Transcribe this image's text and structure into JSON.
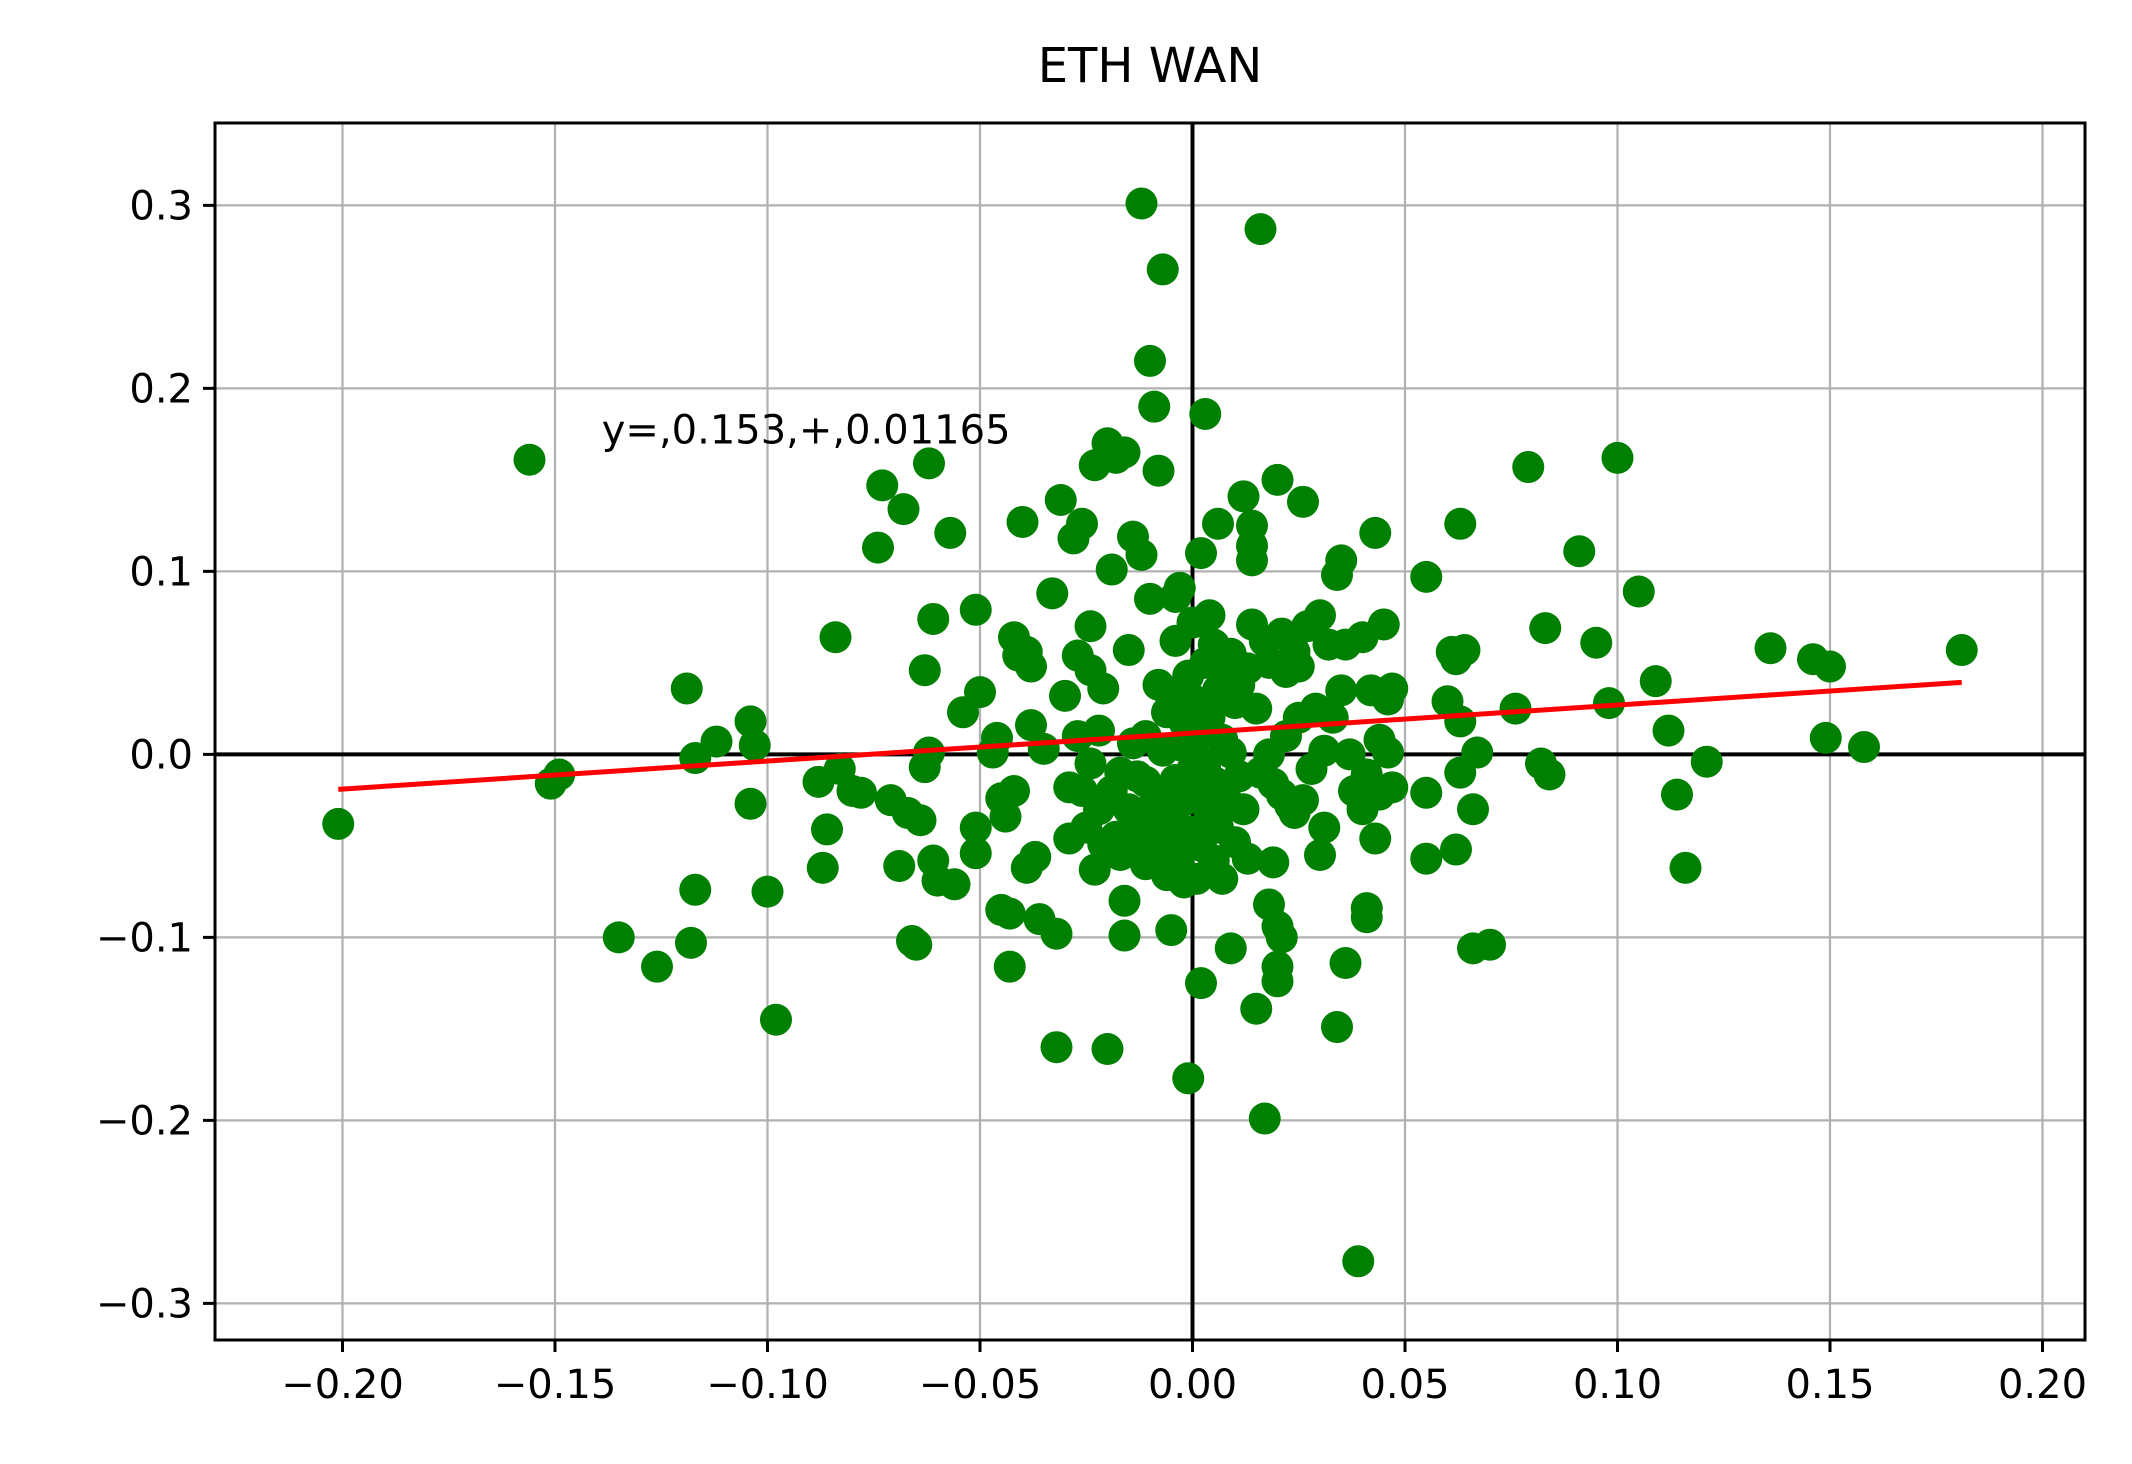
{
  "chart_data": {
    "type": "scatter",
    "title": "ETH WAN",
    "xlabel": "",
    "ylabel": "",
    "xlim": [
      -0.23,
      0.21
    ],
    "ylim": [
      -0.32,
      0.345
    ],
    "x_ticks": [
      -0.2,
      -0.15,
      -0.1,
      -0.05,
      0.0,
      0.05,
      0.1,
      0.15,
      0.2
    ],
    "x_tick_labels": [
      "−0.20",
      "−0.15",
      "−0.10",
      "−0.05",
      "0.00",
      "0.05",
      "0.10",
      "0.15",
      "0.20"
    ],
    "y_ticks": [
      -0.3,
      -0.2,
      -0.1,
      0.0,
      0.1,
      0.2,
      0.3
    ],
    "y_tick_labels": [
      "−0.3",
      "−0.2",
      "−0.1",
      "0.0",
      "0.1",
      "0.2",
      "0.3"
    ],
    "grid": true,
    "axis_lines": {
      "x": 0,
      "y": 0,
      "color": "#000000"
    },
    "point_color": "#008000",
    "fit_line": {
      "slope": 0.153,
      "intercept": 0.01165,
      "x_range": [
        -0.201,
        0.181
      ],
      "color": "#ff0000"
    },
    "annotation": {
      "text": "y=,0.153,+,0.01165",
      "x": -0.139,
      "y": 0.17
    },
    "points": [
      [
        -0.201,
        -0.038
      ],
      [
        -0.156,
        0.161
      ],
      [
        -0.151,
        -0.016
      ],
      [
        -0.149,
        -0.011
      ],
      [
        -0.135,
        -0.1
      ],
      [
        -0.126,
        -0.116
      ],
      [
        -0.119,
        0.036
      ],
      [
        -0.118,
        -0.103
      ],
      [
        -0.117,
        -0.074
      ],
      [
        -0.117,
        -0.002
      ],
      [
        -0.112,
        0.007
      ],
      [
        -0.104,
        0.018
      ],
      [
        -0.104,
        -0.027
      ],
      [
        -0.103,
        0.005
      ],
      [
        -0.1,
        -0.075
      ],
      [
        -0.098,
        -0.145
      ],
      [
        -0.088,
        -0.015
      ],
      [
        -0.087,
        -0.062
      ],
      [
        -0.086,
        -0.041
      ],
      [
        -0.084,
        0.064
      ],
      [
        -0.083,
        -0.008
      ],
      [
        -0.08,
        -0.02
      ],
      [
        -0.078,
        -0.021
      ],
      [
        -0.074,
        0.113
      ],
      [
        -0.073,
        0.147
      ],
      [
        -0.071,
        -0.025
      ],
      [
        -0.069,
        -0.061
      ],
      [
        -0.068,
        0.134
      ],
      [
        -0.067,
        -0.032
      ],
      [
        -0.066,
        -0.102
      ],
      [
        -0.065,
        -0.104
      ],
      [
        -0.064,
        -0.036
      ],
      [
        -0.063,
        0.046
      ],
      [
        -0.063,
        -0.007
      ],
      [
        -0.062,
        0.159
      ],
      [
        -0.062,
        0.001
      ],
      [
        -0.061,
        -0.058
      ],
      [
        -0.061,
        0.074
      ],
      [
        -0.06,
        -0.069
      ],
      [
        -0.057,
        0.121
      ],
      [
        -0.056,
        -0.071
      ],
      [
        -0.054,
        0.023
      ],
      [
        -0.051,
        0.079
      ],
      [
        -0.051,
        -0.04
      ],
      [
        -0.051,
        -0.054
      ],
      [
        -0.05,
        0.034
      ],
      [
        -0.047,
        0.001
      ],
      [
        -0.046,
        0.009
      ],
      [
        -0.045,
        -0.085
      ],
      [
        -0.045,
        -0.024
      ],
      [
        -0.044,
        -0.034
      ],
      [
        -0.043,
        -0.116
      ],
      [
        -0.043,
        -0.087
      ],
      [
        -0.042,
        0.064
      ],
      [
        -0.042,
        -0.02
      ],
      [
        -0.041,
        0.054
      ],
      [
        -0.04,
        0.127
      ],
      [
        -0.039,
        -0.062
      ],
      [
        -0.039,
        0.056
      ],
      [
        -0.038,
        0.048
      ],
      [
        -0.038,
        0.016
      ],
      [
        -0.037,
        -0.056
      ],
      [
        -0.036,
        -0.09
      ],
      [
        -0.035,
        0.003
      ],
      [
        -0.033,
        0.088
      ],
      [
        -0.032,
        -0.16
      ],
      [
        -0.032,
        -0.098
      ],
      [
        -0.031,
        0.139
      ],
      [
        -0.03,
        0.032
      ],
      [
        -0.029,
        -0.018
      ],
      [
        -0.029,
        -0.046
      ],
      [
        -0.028,
        0.118
      ],
      [
        -0.027,
        0.054
      ],
      [
        -0.027,
        0.01
      ],
      [
        -0.026,
        0.126
      ],
      [
        -0.026,
        -0.02
      ],
      [
        -0.025,
        -0.04
      ],
      [
        -0.024,
        0.07
      ],
      [
        -0.024,
        0.046
      ],
      [
        -0.024,
        -0.005
      ],
      [
        -0.023,
        0.158
      ],
      [
        -0.023,
        -0.063
      ],
      [
        -0.022,
        0.013
      ],
      [
        -0.022,
        -0.03
      ],
      [
        -0.021,
        -0.049
      ],
      [
        -0.021,
        0.036
      ],
      [
        -0.02,
        0.17
      ],
      [
        -0.02,
        -0.161
      ],
      [
        -0.019,
        0.101
      ],
      [
        -0.019,
        -0.02
      ],
      [
        -0.018,
        -0.045
      ],
      [
        -0.018,
        0.162
      ],
      [
        -0.017,
        -0.055
      ],
      [
        -0.017,
        -0.01
      ],
      [
        -0.016,
        -0.08
      ],
      [
        -0.016,
        -0.099
      ],
      [
        -0.016,
        0.165
      ],
      [
        -0.015,
        0.057
      ],
      [
        -0.015,
        -0.03
      ],
      [
        -0.014,
        0.119
      ],
      [
        -0.014,
        0.006
      ],
      [
        -0.013,
        -0.045
      ],
      [
        -0.013,
        -0.012
      ],
      [
        -0.012,
        0.301
      ],
      [
        -0.012,
        0.109
      ],
      [
        -0.011,
        -0.015
      ],
      [
        -0.011,
        0.01
      ],
      [
        -0.011,
        -0.06
      ],
      [
        -0.01,
        0.215
      ],
      [
        -0.01,
        0.085
      ],
      [
        -0.01,
        -0.03
      ],
      [
        -0.009,
        0.19
      ],
      [
        -0.009,
        -0.04
      ],
      [
        -0.008,
        0.155
      ],
      [
        -0.008,
        -0.022
      ],
      [
        -0.008,
        0.038
      ],
      [
        -0.007,
        0.265
      ],
      [
        -0.007,
        -0.05
      ],
      [
        -0.007,
        0.002
      ],
      [
        -0.006,
        -0.066
      ],
      [
        -0.006,
        0.023
      ],
      [
        -0.005,
        -0.096
      ],
      [
        -0.005,
        -0.035
      ],
      [
        -0.005,
        0.03
      ],
      [
        -0.004,
        0.086
      ],
      [
        -0.004,
        0.062
      ],
      [
        -0.004,
        -0.014
      ],
      [
        -0.003,
        0.091
      ],
      [
        -0.003,
        -0.055
      ],
      [
        -0.003,
        0.005
      ],
      [
        -0.002,
        -0.07
      ],
      [
        -0.002,
        -0.025
      ],
      [
        -0.002,
        0.018
      ],
      [
        -0.001,
        -0.177
      ],
      [
        -0.001,
        0.043
      ],
      [
        -0.001,
        -0.042
      ],
      [
        0.0,
        0.072
      ],
      [
        0.0,
        -0.008
      ],
      [
        0.0,
        0.03
      ],
      [
        0.001,
        -0.068
      ],
      [
        0.001,
        0.01
      ],
      [
        0.001,
        -0.02
      ],
      [
        0.002,
        -0.125
      ],
      [
        0.002,
        0.11
      ],
      [
        0.002,
        -0.05
      ],
      [
        0.003,
        0.186
      ],
      [
        0.003,
        0.05
      ],
      [
        0.003,
        -0.005
      ],
      [
        0.004,
        0.076
      ],
      [
        0.004,
        -0.032
      ],
      [
        0.004,
        0.02
      ],
      [
        0.005,
        0.06
      ],
      [
        0.005,
        -0.015
      ],
      [
        0.005,
        -0.058
      ],
      [
        0.006,
        0.126
      ],
      [
        0.006,
        0.035
      ],
      [
        0.006,
        -0.04
      ],
      [
        0.007,
        -0.068
      ],
      [
        0.007,
        0.008
      ],
      [
        0.008,
        0.045
      ],
      [
        0.008,
        -0.025
      ],
      [
        0.009,
        -0.106
      ],
      [
        0.009,
        0.055
      ],
      [
        0.009,
        0.001
      ],
      [
        0.01,
        -0.048
      ],
      [
        0.01,
        0.028
      ],
      [
        0.011,
        -0.012
      ],
      [
        0.011,
        0.038
      ],
      [
        0.012,
        0.141
      ],
      [
        0.012,
        -0.03
      ],
      [
        0.013,
        -0.057
      ],
      [
        0.013,
        0.047
      ],
      [
        0.014,
        0.114
      ],
      [
        0.014,
        0.125
      ],
      [
        0.014,
        0.106
      ],
      [
        0.014,
        0.071
      ],
      [
        0.015,
        -0.139
      ],
      [
        0.015,
        0.025
      ],
      [
        0.016,
        0.287
      ],
      [
        0.016,
        -0.01
      ],
      [
        0.017,
        -0.199
      ],
      [
        0.017,
        0.062
      ],
      [
        0.018,
        -0.082
      ],
      [
        0.018,
        0.05
      ],
      [
        0.018,
        0.0
      ],
      [
        0.019,
        -0.059
      ],
      [
        0.019,
        -0.016
      ],
      [
        0.02,
        0.15
      ],
      [
        0.02,
        -0.094
      ],
      [
        0.02,
        -0.116
      ],
      [
        0.02,
        -0.124
      ],
      [
        0.021,
        -0.1
      ],
      [
        0.021,
        0.066
      ],
      [
        0.021,
        -0.022
      ],
      [
        0.022,
        0.045
      ],
      [
        0.022,
        0.01
      ],
      [
        0.023,
        -0.028
      ],
      [
        0.024,
        0.056
      ],
      [
        0.024,
        -0.032
      ],
      [
        0.025,
        0.02
      ],
      [
        0.025,
        0.048
      ],
      [
        0.026,
        0.138
      ],
      [
        0.026,
        -0.025
      ],
      [
        0.027,
        0.07
      ],
      [
        0.028,
        -0.008
      ],
      [
        0.029,
        0.025
      ],
      [
        0.03,
        0.076
      ],
      [
        0.03,
        -0.055
      ],
      [
        0.031,
        0.002
      ],
      [
        0.031,
        -0.04
      ],
      [
        0.032,
        0.06
      ],
      [
        0.033,
        0.02
      ],
      [
        0.034,
        -0.149
      ],
      [
        0.034,
        0.098
      ],
      [
        0.035,
        0.106
      ],
      [
        0.035,
        0.035
      ],
      [
        0.036,
        -0.114
      ],
      [
        0.036,
        0.06
      ],
      [
        0.037,
        0.0
      ],
      [
        0.038,
        -0.02
      ],
      [
        0.039,
        -0.277
      ],
      [
        0.04,
        -0.03
      ],
      [
        0.04,
        0.064
      ],
      [
        0.041,
        -0.084
      ],
      [
        0.041,
        -0.089
      ],
      [
        0.041,
        -0.011
      ],
      [
        0.042,
        0.035
      ],
      [
        0.043,
        0.121
      ],
      [
        0.043,
        -0.046
      ],
      [
        0.044,
        0.008
      ],
      [
        0.044,
        -0.022
      ],
      [
        0.045,
        0.071
      ],
      [
        0.046,
        0.03
      ],
      [
        0.046,
        0.001
      ],
      [
        0.047,
        -0.018
      ],
      [
        0.047,
        0.036
      ],
      [
        0.055,
        -0.021
      ],
      [
        0.055,
        0.097
      ],
      [
        0.055,
        -0.057
      ],
      [
        0.06,
        0.029
      ],
      [
        0.061,
        0.056
      ],
      [
        0.062,
        -0.052
      ],
      [
        0.062,
        0.052
      ],
      [
        0.063,
        0.018
      ],
      [
        0.063,
        0.126
      ],
      [
        0.063,
        -0.01
      ],
      [
        0.064,
        0.057
      ],
      [
        0.066,
        -0.106
      ],
      [
        0.066,
        -0.03
      ],
      [
        0.067,
        0.001
      ],
      [
        0.07,
        -0.104
      ],
      [
        0.076,
        0.025
      ],
      [
        0.079,
        0.157
      ],
      [
        0.082,
        -0.005
      ],
      [
        0.083,
        0.069
      ],
      [
        0.084,
        -0.011
      ],
      [
        0.091,
        0.111
      ],
      [
        0.095,
        0.061
      ],
      [
        0.098,
        0.028
      ],
      [
        0.1,
        0.162
      ],
      [
        0.105,
        0.089
      ],
      [
        0.109,
        0.04
      ],
      [
        0.112,
        0.013
      ],
      [
        0.114,
        -0.022
      ],
      [
        0.116,
        -0.062
      ],
      [
        0.121,
        -0.004
      ],
      [
        0.136,
        0.058
      ],
      [
        0.146,
        0.052
      ],
      [
        0.149,
        0.009
      ],
      [
        0.15,
        0.048
      ],
      [
        0.158,
        0.004
      ],
      [
        0.181,
        0.057
      ]
    ]
  }
}
